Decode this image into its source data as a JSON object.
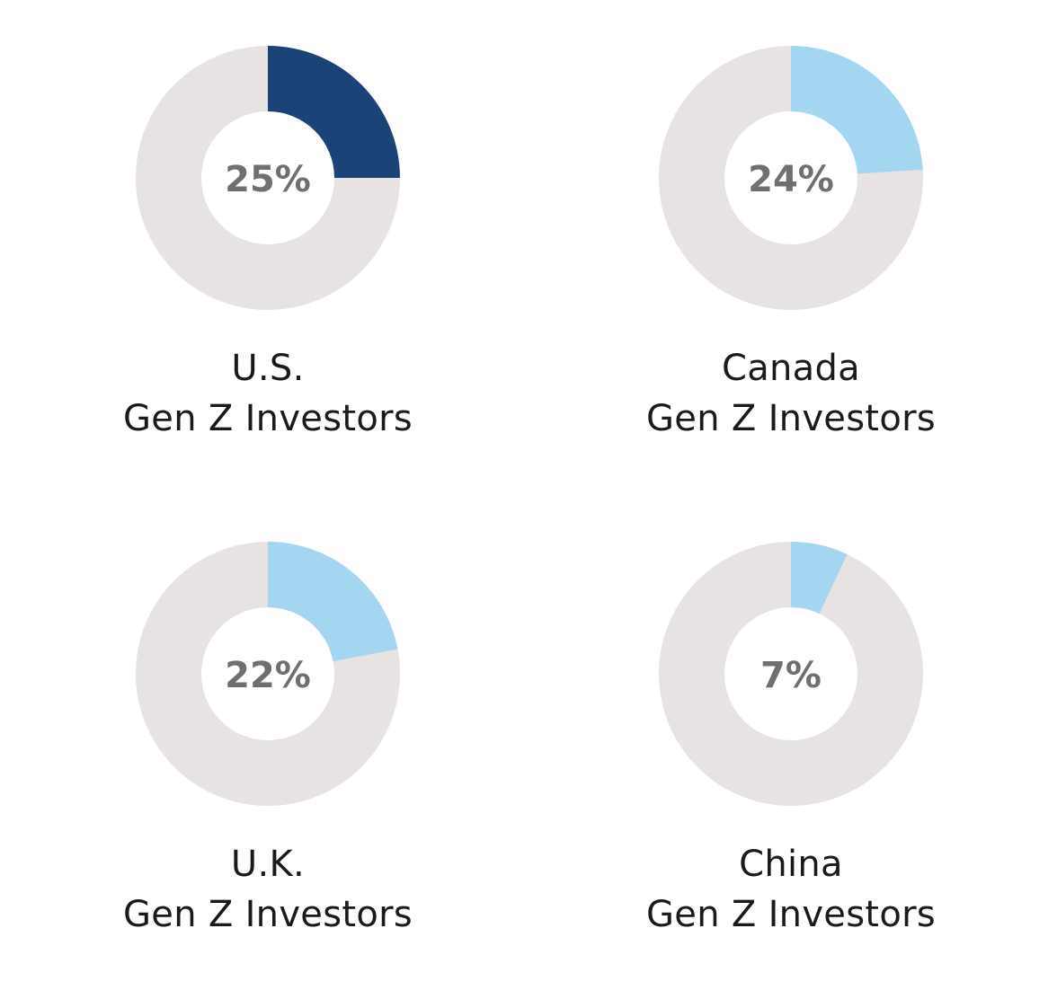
{
  "colors": {
    "track": "#e6e3e2",
    "highlight": "#1b4378",
    "accent": "#a4d6f1",
    "label": "#6f6f6f",
    "caption": "#1a1a1a"
  },
  "chart_data": [
    {
      "type": "pie",
      "variant": "donut",
      "value": 25,
      "value_label": "25%",
      "line1": "U.S.",
      "line2": "Gen Z Investors",
      "color": "highlight"
    },
    {
      "type": "pie",
      "variant": "donut",
      "value": 24,
      "value_label": "24%",
      "line1": "Canada",
      "line2": "Gen Z Investors",
      "color": "accent"
    },
    {
      "type": "pie",
      "variant": "donut",
      "value": 22,
      "value_label": "22%",
      "line1": "U.K.",
      "line2": "Gen Z Investors",
      "color": "accent"
    },
    {
      "type": "pie",
      "variant": "donut",
      "value": 7,
      "value_label": "7%",
      "line1": "China",
      "line2": "Gen Z Investors",
      "color": "accent"
    }
  ]
}
